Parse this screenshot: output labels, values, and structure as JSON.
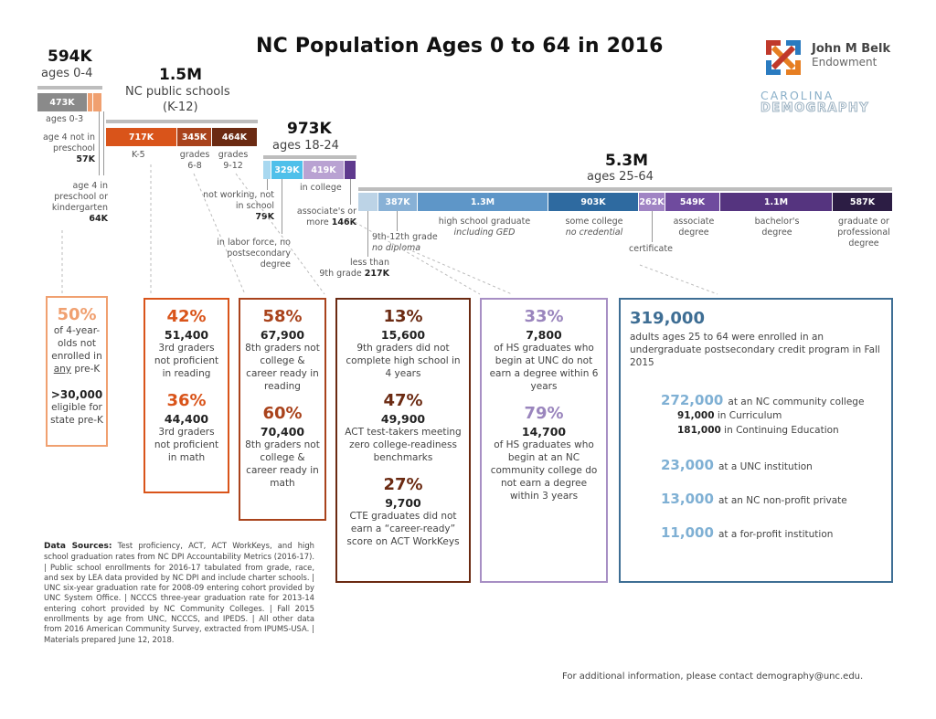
{
  "title": "NC Population Ages 0 to 64 in 2016",
  "logo": {
    "org1_line1": "John M Belk",
    "org1_line2": "Endowment",
    "org2_line1": "CAROLINA",
    "org2_line2": "DEMOGRAPHY"
  },
  "groups": {
    "ages04": {
      "total": "594K",
      "label": "ages 0-4",
      "segments": [
        {
          "value": "473K",
          "color": "#8a8a8a"
        },
        {
          "value": "",
          "color": "#f0a070"
        },
        {
          "value": "",
          "color": "#f0a070"
        }
      ],
      "notes": {
        "ages03": "ages 0-3",
        "not_preschool": "age 4 not in preschool",
        "not_preschool_value": "57K",
        "in_preschool": "age 4 in preschool or kindergarten",
        "in_preschool_value": "64K"
      }
    },
    "schools": {
      "total": "1.5M",
      "label_line1": "NC public schools",
      "label_line2": "(K-12)",
      "segments": [
        {
          "value": "717K",
          "color": "#d9541a",
          "label": "K-5"
        },
        {
          "value": "345K",
          "color": "#a9431c",
          "label": "grades 6-8"
        },
        {
          "value": "464K",
          "color": "#6b2a12",
          "label": "grades 9-12"
        }
      ]
    },
    "ages1824": {
      "total": "973K",
      "label": "ages 18-24",
      "segments": [
        {
          "value": "",
          "color": "#a8d8f0"
        },
        {
          "value": "329K",
          "color": "#4fc0ea"
        },
        {
          "value": "419K",
          "color": "#b9a2d2"
        },
        {
          "value": "",
          "color": "#5f3a8e"
        }
      ],
      "notes": {
        "not_working": "not working, not in school",
        "not_working_value": "79K",
        "labor_force": "in labor force, no postsecondary degree",
        "in_college": "in college",
        "assoc_more": "associate's or more",
        "assoc_more_value": "146K"
      }
    },
    "ages2564": {
      "total": "5.3M",
      "label": "ages 25-64",
      "segments": [
        {
          "value": "",
          "color": "#bcd3e6"
        },
        {
          "value": "387K",
          "color": "#88b1d6"
        },
        {
          "value": "1.3M",
          "color": "#5e96c8"
        },
        {
          "value": "903K",
          "color": "#2e6aa0"
        },
        {
          "value": "262K",
          "color": "#a084c4"
        },
        {
          "value": "549K",
          "color": "#6f4b9e"
        },
        {
          "value": "1.1M",
          "color": "#55347f"
        },
        {
          "value": "587K",
          "color": "#2c1d44"
        }
      ],
      "notes": {
        "less_than_9": "less than",
        "less_than_9_b": "9th grade",
        "less_than_9_value": "217K",
        "grade_9_12": "9th-12th grade",
        "no_diploma": "no diploma",
        "hs_grad": "high school graduate",
        "incl_ged": "including GED",
        "some_college": "some college",
        "no_credential": "no credential",
        "certificate": "certificate",
        "associate": "associate degree",
        "bachelor": "bachelor's degree",
        "graduate": "graduate or professional degree"
      }
    }
  },
  "boxes": {
    "prek": {
      "color": "#f0a070",
      "pct1": "50%",
      "desc1a": "of 4-year-",
      "desc1b": "olds not",
      "desc1c": "enrolled in",
      "desc1d_u": "any",
      "desc1d": " pre-K",
      "num2": ">30,000",
      "desc2": "eligible for state pre-K"
    },
    "elem": {
      "color": "#d9541a",
      "pct1": "42%",
      "num1": "51,400",
      "desc1": "3rd graders not proficient in reading",
      "pct2": "36%",
      "num2": "44,400",
      "desc2": "3rd graders not proficient in math"
    },
    "middle": {
      "color": "#a9431c",
      "pct1": "58%",
      "num1": "67,900",
      "desc1": "8th graders not college & career ready in reading",
      "pct2": "60%",
      "num2": "70,400",
      "desc2": "8th graders not college & career ready in math"
    },
    "high": {
      "color": "#6b2a12",
      "pct1": "13%",
      "num1": "15,600",
      "desc1": "9th graders did not complete high school in 4 years",
      "pct2": "47%",
      "num2": "49,900",
      "desc2": "ACT test-takers meeting zero college-readiness benchmarks",
      "pct3": "27%",
      "num3": "9,700",
      "desc3": "CTE graduates did not earn a “career-ready” score on ACT WorkKeys"
    },
    "college": {
      "color": "#a78fc4",
      "pct1": "33%",
      "num1": "7,800",
      "desc1": "of HS graduates who begin at UNC do not earn a degree within 6 years",
      "pct2": "79%",
      "num2": "14,700",
      "desc2": "of HS graduates who begin at an NC community college do not earn a degree within 3 years"
    },
    "adults": {
      "color": "#3e6e94",
      "headline": "319,000",
      "desc": "adults ages 25 to 64 were enrolled in an undergraduate postsecondary credit program in Fall 2015",
      "items": [
        {
          "value": "272,000",
          "label": "at an NC community college"
        },
        {
          "value": "23,000",
          "label": "at a UNC institution"
        },
        {
          "value": "13,000",
          "label": "at an NC non-profit private"
        },
        {
          "value": "11,000",
          "label": "at a for-profit institution"
        }
      ],
      "sub_items": [
        {
          "value": "91,000",
          "label": "in Curriculum"
        },
        {
          "value": "181,000",
          "label": "in Continuing Education"
        }
      ]
    }
  },
  "sources": {
    "heading": "Data Sources:",
    "text": "Test proficiency, ACT, ACT WorkKeys, and high school graduation rates from NC DPI Accountability Metrics (2016-17). | Public school enrollments for 2016-17 tabulated from grade, race, and sex by LEA data provided by NC DPI and include charter schools. | UNC six-year graduation rate for 2008-09 entering cohort provided by UNC System Office. | NCCCS three-year graduation rate for 2013-14 entering cohort provided by NC Community Colleges. | Fall 2015 enrollments by age from UNC, NCCCS, and IPEDS. | All other data from 2016 American Community Survey, extracted from IPUMS-USA. | Materials prepared June 12, 2018."
  },
  "contact": "For additional information, please contact demography@unc.edu."
}
